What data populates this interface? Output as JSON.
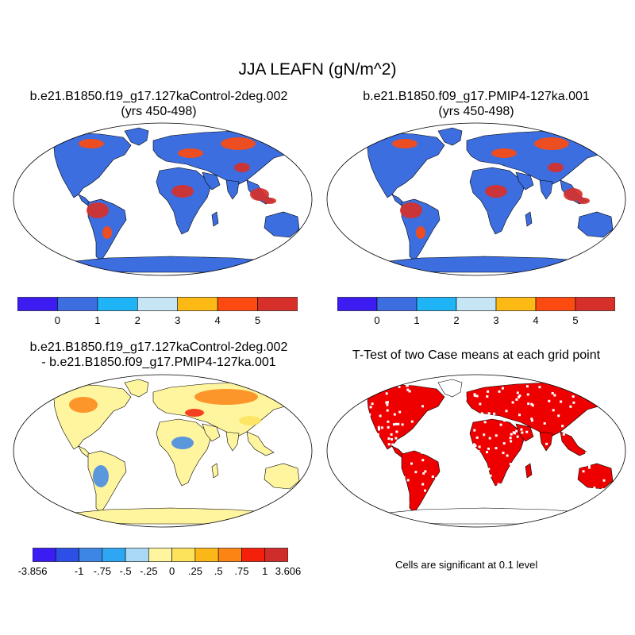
{
  "main_title": "JJA LEAFN (gN/m^2)",
  "panels": {
    "top_left": {
      "title": "b.e21.B1850.f19_g17.127kaControl-2deg.002",
      "subtitle": "(yrs 450-498)"
    },
    "top_right": {
      "title": "b.e21.B1850.f09_g17.PMIP4-127ka.001",
      "subtitle": "(yrs 450-498)"
    },
    "bottom_left": {
      "title": "b.e21.B1850.f19_g17.127kaControl-2deg.002",
      "subtitle": "- b.e21.B1850.f09_g17.PMIP4-127ka.001"
    },
    "bottom_right": {
      "title": "T-Test of two Case means at each grid point",
      "note": "Cells are significant at 0.1 level"
    }
  },
  "colorbar_abs": {
    "labels": [
      "0",
      "1",
      "2",
      "3",
      "4",
      "5"
    ],
    "colors": [
      "#3d1cf2",
      "#3c6ee0",
      "#1eb4f5",
      "#c6e6f6",
      "#fdb914",
      "#fc4a10",
      "#d7302a"
    ]
  },
  "colorbar_diff": {
    "labels": [
      "-3.856",
      "-1",
      "-.75",
      "-.5",
      "-.25",
      "0",
      ".25",
      ".5",
      ".75",
      "1",
      "3.606"
    ],
    "colors": [
      "#3b1cf2",
      "#2c4fe6",
      "#3d86e6",
      "#2ea6f3",
      "#a9d9f5",
      "#fff59e",
      "#fde35c",
      "#fbb718",
      "#fb8415",
      "#f5200c",
      "#cf2c2c"
    ]
  },
  "map_colors": {
    "ocean": "#ffffff",
    "land_abs": "#3c6ee0",
    "high_abs": "#d7302a",
    "mid_abs": "#fc4a10",
    "land_diff": "#fff59e",
    "sig": "#ee0000",
    "antarctica_diff": "#fff59e"
  }
}
